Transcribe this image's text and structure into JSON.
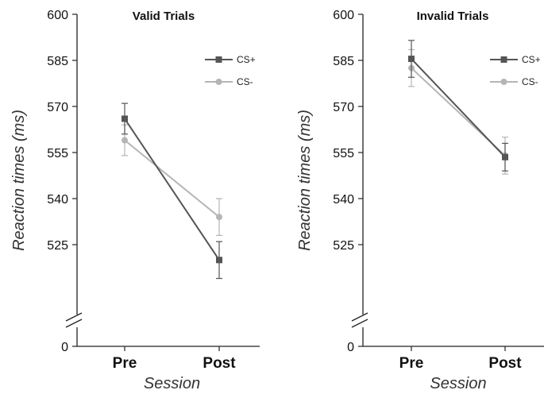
{
  "chart_data": [
    {
      "type": "line",
      "title": "Valid Trials",
      "xlabel": "Session",
      "ylabel": "Reaction times (ms)",
      "categories": [
        "Pre",
        "Post"
      ],
      "ylim": [
        510,
        600
      ],
      "axis_break": true,
      "yticks": [
        "0",
        "525",
        "540",
        "555",
        "570",
        "585",
        "600"
      ],
      "legend": "top-right",
      "series": [
        {
          "name": "CS+",
          "color": "#555555",
          "marker": "square",
          "values": [
            566,
            520
          ],
          "errors": [
            5,
            6
          ]
        },
        {
          "name": "CS-",
          "color": "#b5b5b5",
          "marker": "circle",
          "values": [
            559,
            534
          ],
          "errors": [
            5,
            6
          ]
        }
      ]
    },
    {
      "type": "line",
      "title": "Invalid Trials",
      "xlabel": "Session",
      "ylabel": "Reaction times (ms)",
      "categories": [
        "Pre",
        "Post"
      ],
      "ylim": [
        510,
        600
      ],
      "axis_break": true,
      "yticks": [
        "0",
        "525",
        "540",
        "555",
        "570",
        "585",
        "600"
      ],
      "legend": "top-right",
      "series": [
        {
          "name": "CS+",
          "color": "#555555",
          "marker": "square",
          "values": [
            585.5,
            553.5
          ],
          "errors": [
            6,
            4.5
          ]
        },
        {
          "name": "CS-",
          "color": "#b5b5b5",
          "marker": "circle",
          "values": [
            582.5,
            554
          ],
          "errors": [
            6,
            6
          ]
        }
      ]
    }
  ]
}
